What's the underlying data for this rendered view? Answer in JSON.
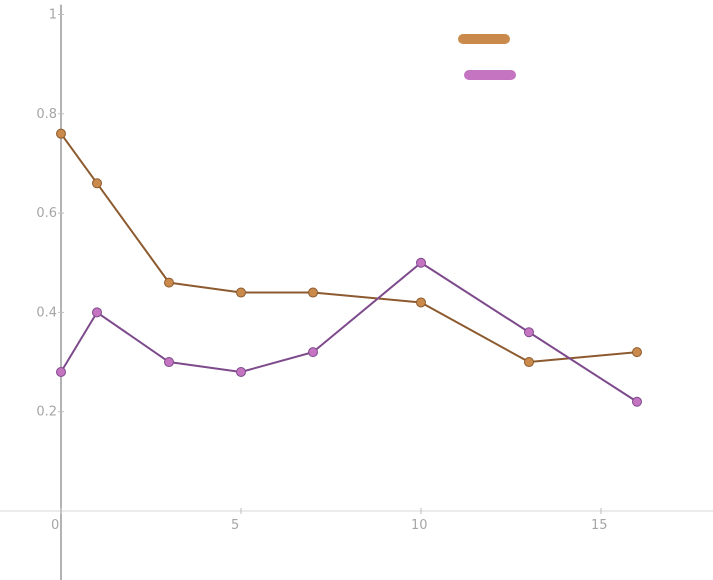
{
  "chart_data": {
    "type": "line",
    "title": "",
    "xlabel": "",
    "ylabel": "",
    "xlim": [
      0,
      18
    ],
    "ylim": [
      -0.14,
      1.02
    ],
    "x_ticks": [
      {
        "value": 0,
        "label": "0"
      },
      {
        "value": 5,
        "label": "5"
      },
      {
        "value": 10,
        "label": "10"
      },
      {
        "value": 15,
        "label": "15"
      }
    ],
    "y_ticks": [
      {
        "value": 0.2,
        "label": "0.2"
      },
      {
        "value": 0.4,
        "label": "0.4"
      },
      {
        "value": 0.6,
        "label": "0.6"
      },
      {
        "value": 0.8,
        "label": "0.8"
      },
      {
        "value": 1,
        "label": "1"
      }
    ],
    "grid": false,
    "legend": {
      "position": "top-right",
      "labels_shown": false
    },
    "series": [
      {
        "key": "orange",
        "line_color": "#8c5a2e",
        "marker_color": "#c98a4b",
        "legend_color": "#c98a4b",
        "x": [
          0,
          1,
          3,
          5,
          7,
          10,
          13,
          16
        ],
        "y": [
          0.76,
          0.66,
          0.46,
          0.44,
          0.44,
          0.42,
          0.3,
          0.32
        ]
      },
      {
        "key": "purple",
        "line_color": "#7d4a8c",
        "marker_color": "#c474c0",
        "legend_color": "#c474c0",
        "x": [
          0,
          1,
          3,
          5,
          7,
          10,
          13,
          16
        ],
        "y": [
          0.28,
          0.4,
          0.3,
          0.28,
          0.32,
          0.5,
          0.36,
          0.22
        ]
      }
    ]
  }
}
